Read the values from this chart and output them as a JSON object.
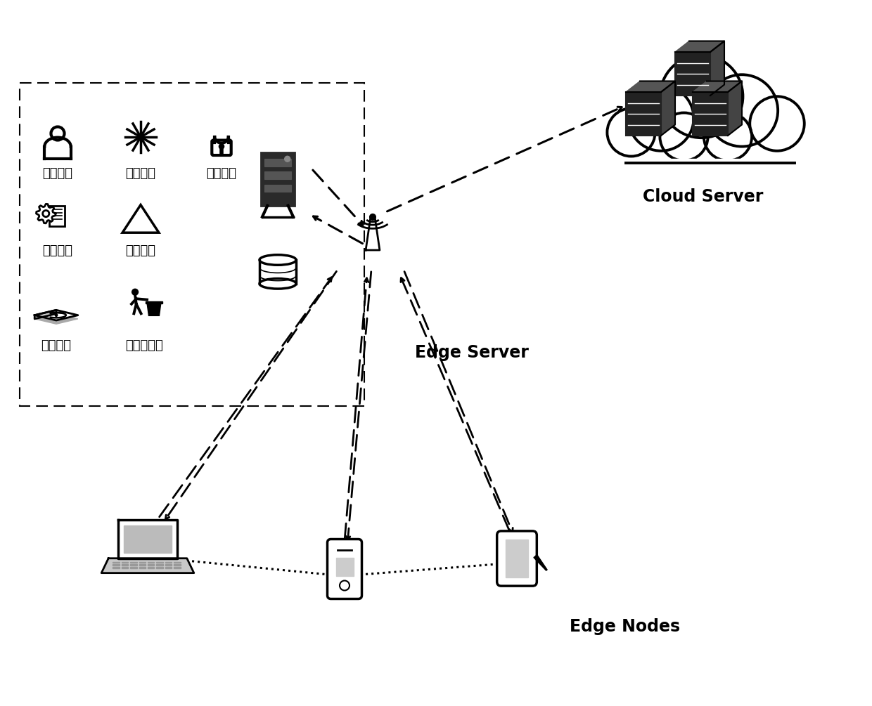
{
  "bg_color": "#ffffff",
  "box_color": "#000000",
  "text_color": "#000000",
  "cloud_server_label": "Cloud Server",
  "edge_server_label": "Edge Server",
  "edge_nodes_label": "Edge Nodes",
  "box_labels_row1": [
    "身份审核",
    "性能匹配",
    "声誉计算"
  ],
  "box_labels_row2": [
    "声誉更新",
    "声誉存储"
  ],
  "box_labels_row3": [
    "声誉查询",
    "黑名单管理"
  ],
  "label_fontsize": 13,
  "server_label_fontsize": 17
}
